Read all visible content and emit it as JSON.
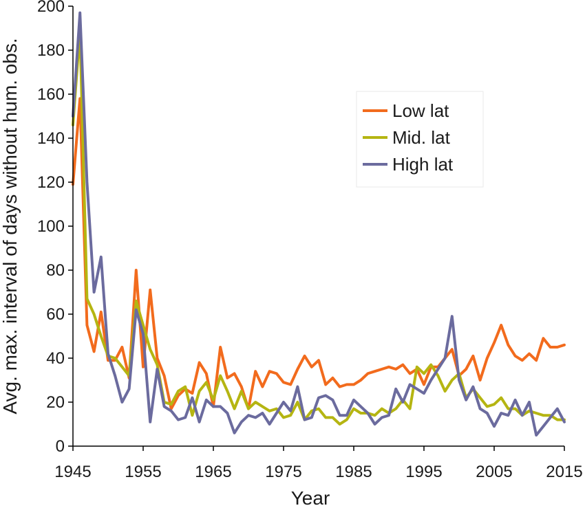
{
  "chart_data": {
    "type": "line",
    "xlabel": "Year",
    "ylabel": "Avg. max. interval of days without hum. obs.",
    "xlim": [
      1945,
      2015
    ],
    "ylim": [
      0,
      200
    ],
    "x_ticks": [
      1945,
      1955,
      1965,
      1975,
      1985,
      1995,
      2005,
      2015
    ],
    "y_ticks": [
      0,
      20,
      40,
      60,
      80,
      100,
      120,
      140,
      160,
      180,
      200
    ],
    "grid": false,
    "legend_position": "top-right",
    "x": [
      1945,
      1946,
      1947,
      1948,
      1949,
      1950,
      1951,
      1952,
      1953,
      1954,
      1955,
      1956,
      1957,
      1958,
      1959,
      1960,
      1961,
      1962,
      1963,
      1964,
      1965,
      1966,
      1967,
      1968,
      1969,
      1970,
      1971,
      1972,
      1973,
      1974,
      1975,
      1976,
      1977,
      1978,
      1979,
      1980,
      1981,
      1982,
      1983,
      1984,
      1985,
      1986,
      1987,
      1988,
      1989,
      1990,
      1991,
      1992,
      1993,
      1994,
      1995,
      1996,
      1997,
      1998,
      1999,
      2000,
      2001,
      2002,
      2003,
      2004,
      2005,
      2006,
      2007,
      2008,
      2009,
      2010,
      2011,
      2012,
      2013,
      2014,
      2015
    ],
    "series": [
      {
        "name": "Low lat",
        "color": "#f26b1d",
        "values": [
          119,
          158,
          55,
          43,
          61,
          39,
          39,
          45,
          31,
          80,
          36,
          71,
          40,
          32,
          17,
          23,
          26,
          24,
          38,
          33,
          18,
          45,
          31,
          33,
          27,
          17,
          34,
          27,
          34,
          33,
          29,
          28,
          35,
          41,
          36,
          39,
          28,
          31,
          27,
          28,
          28,
          30,
          33,
          34,
          35,
          36,
          35,
          37,
          33,
          35,
          28,
          36,
          36,
          40,
          44,
          32,
          35,
          41,
          30,
          40,
          47,
          55,
          46,
          41,
          39,
          42,
          39,
          49,
          45,
          45,
          46
        ]
      },
      {
        "name": "Mid. lat",
        "color": "#b5b512",
        "values": [
          146,
          189,
          67,
          60,
          50,
          41,
          40,
          36,
          32,
          66,
          55,
          44,
          37,
          20,
          19,
          25,
          27,
          14,
          25,
          29,
          21,
          32,
          25,
          17,
          25,
          17,
          20,
          18,
          16,
          17,
          13,
          14,
          20,
          12,
          16,
          17,
          13,
          13,
          10,
          12,
          17,
          15,
          15,
          14,
          17,
          15,
          17,
          21,
          17,
          36,
          33,
          37,
          32,
          25,
          30,
          33,
          22,
          26,
          22,
          18,
          19,
          22,
          17,
          17,
          14,
          16,
          15,
          14,
          14,
          12,
          12
        ]
      },
      {
        "name": "High lat",
        "color": "#6b6b9e",
        "values": [
          150,
          197,
          120,
          70,
          86,
          42,
          32,
          20,
          26,
          62,
          51,
          11,
          35,
          18,
          16,
          12,
          13,
          22,
          11,
          21,
          18,
          18,
          15,
          6,
          11,
          14,
          13,
          15,
          10,
          15,
          20,
          16,
          27,
          12,
          13,
          22,
          23,
          21,
          14,
          14,
          21,
          18,
          15,
          10,
          13,
          14,
          26,
          20,
          28,
          26,
          24,
          30,
          35,
          40,
          59,
          30,
          21,
          27,
          17,
          15,
          9,
          15,
          14,
          21,
          14,
          20,
          5,
          9,
          13,
          17,
          11
        ]
      }
    ]
  }
}
